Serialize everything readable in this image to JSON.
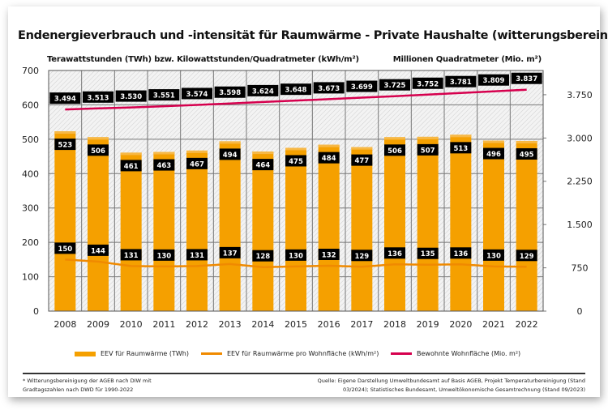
{
  "chart_data": {
    "type": "bar",
    "title": "Endenergieverbrauch und -intensität für Raumwärme - Private Haushalte (witterungsbereinigt)*",
    "ylabel_left": "Terawattstunden (TWh) bzw. Kilowattstunden/Quadratmeter (kWh/m²)",
    "ylabel_right": "Millionen Quadratmeter (Mio. m²)",
    "categories": [
      "2008",
      "2009",
      "2010",
      "2011",
      "2012",
      "2013",
      "2014",
      "2015",
      "2016",
      "2017",
      "2018",
      "2019",
      "2020",
      "2021",
      "2022"
    ],
    "ylim_left": [
      0,
      700
    ],
    "yticks_left": [
      "0",
      "100",
      "200",
      "300",
      "400",
      "500",
      "600",
      "700"
    ],
    "ylim_right": [
      0,
      4170
    ],
    "yticks_right": [
      {
        "v": 0,
        "label": "0"
      },
      {
        "v": 750,
        "label": "750"
      },
      {
        "v": 1500,
        "label": "1.500"
      },
      {
        "v": 2250,
        "label": "2.250"
      },
      {
        "v": 3000,
        "label": "3.000"
      },
      {
        "v": 3750,
        "label": "3.750"
      }
    ],
    "grid": true,
    "legend_position": "bottom",
    "series": [
      {
        "name": "EEV für Raumwärme (TWh)",
        "type": "bar",
        "axis": "left",
        "color": "#f5a000",
        "values": [
          523,
          506,
          461,
          463,
          467,
          494,
          464,
          475,
          484,
          477,
          506,
          507,
          513,
          496,
          495
        ]
      },
      {
        "name": "EEV für Raumwärme pro Wohnfläche (kWh/m²)",
        "type": "line",
        "axis": "left",
        "color": "#f08a00",
        "values": [
          150,
          144,
          131,
          130,
          131,
          137,
          128,
          130,
          132,
          129,
          136,
          135,
          136,
          130,
          129
        ]
      },
      {
        "name": "Bewohnte Wohnfläche (Mio. m²)",
        "type": "line",
        "axis": "right",
        "color": "#d6004e",
        "values": [
          3494,
          3513,
          3530,
          3551,
          3574,
          3598,
          3624,
          3648,
          3673,
          3699,
          3725,
          3752,
          3781,
          3809,
          3837
        ],
        "labels": [
          "3.494",
          "3.513",
          "3.530",
          "3.551",
          "3.574",
          "3.598",
          "3.624",
          "3.648",
          "3.673",
          "3.699",
          "3.725",
          "3.752",
          "3.781",
          "3.809",
          "3.837"
        ]
      }
    ]
  },
  "footnote": "* Witterungsbereinigung der AGEB nach DIW mit Gradtagszahlen nach DWD für 1990-2022",
  "source": "Quelle: Eigene Darstellung Umweltbundesamt auf Basis AGEB, Projekt Temperaturbereinigung (Stand 03/2024); Statistisches Bundesamt, Umweltökonomische Gesamtrechnung (Stand 09/2023)"
}
